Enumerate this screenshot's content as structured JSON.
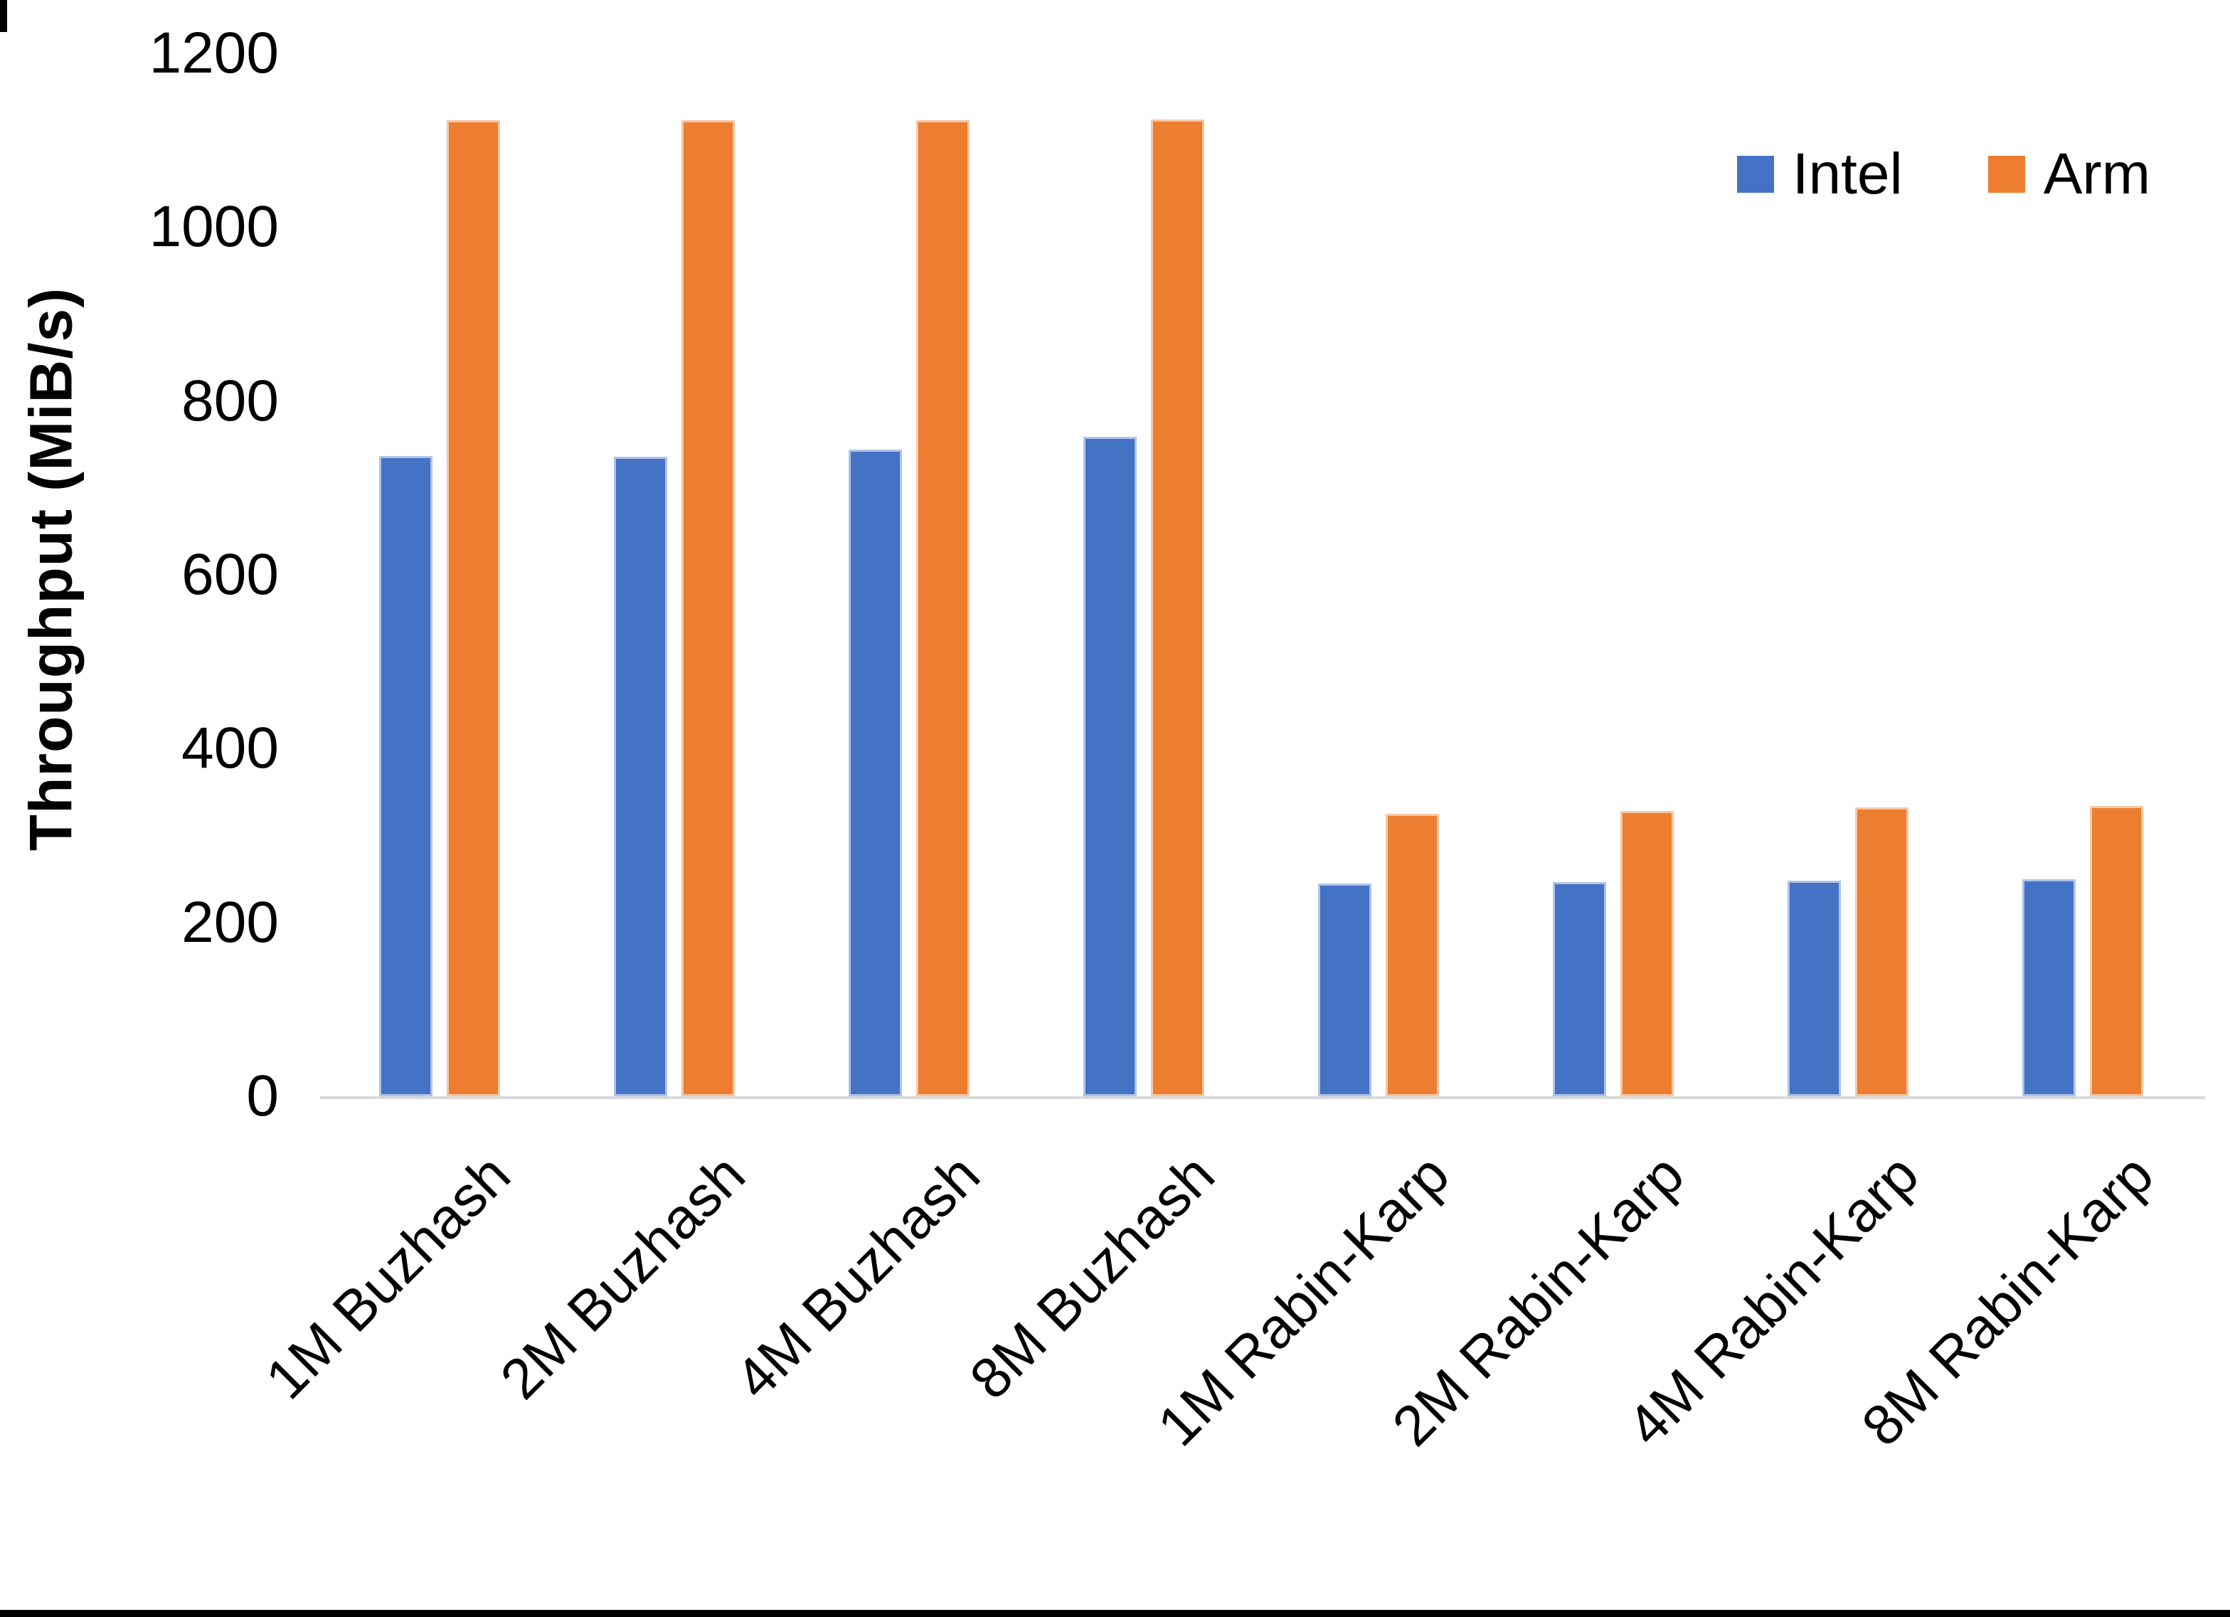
{
  "chart_data": {
    "type": "bar",
    "title": "",
    "xlabel": "",
    "ylabel": "Throughput (MiB/s)",
    "ylim": [
      0,
      1200
    ],
    "yticks": [
      0,
      200,
      400,
      600,
      800,
      1000,
      1200
    ],
    "grid": false,
    "legend_position": "top-right",
    "categories": [
      "1M Buzhash",
      "2M Buzhash",
      "4M Buzhash",
      "8M Buzhash",
      "1M Rabin-Karp",
      "2M Rabin-Karp",
      "4M Rabin-Karp",
      "8M Rabin-Karp"
    ],
    "series": [
      {
        "name": "Intel",
        "color": "#4472C4",
        "values": [
          737,
          736,
          744,
          759,
          245,
          246,
          248,
          250
        ]
      },
      {
        "name": "Arm",
        "color": "#ED7D31",
        "values": [
          1123,
          1123,
          1123,
          1124,
          325,
          328,
          332,
          334
        ]
      }
    ]
  },
  "colors": {
    "intel": "#4472C4",
    "arm": "#ED7D31",
    "axis_line": "#d9d9d9",
    "text": "#000000"
  }
}
